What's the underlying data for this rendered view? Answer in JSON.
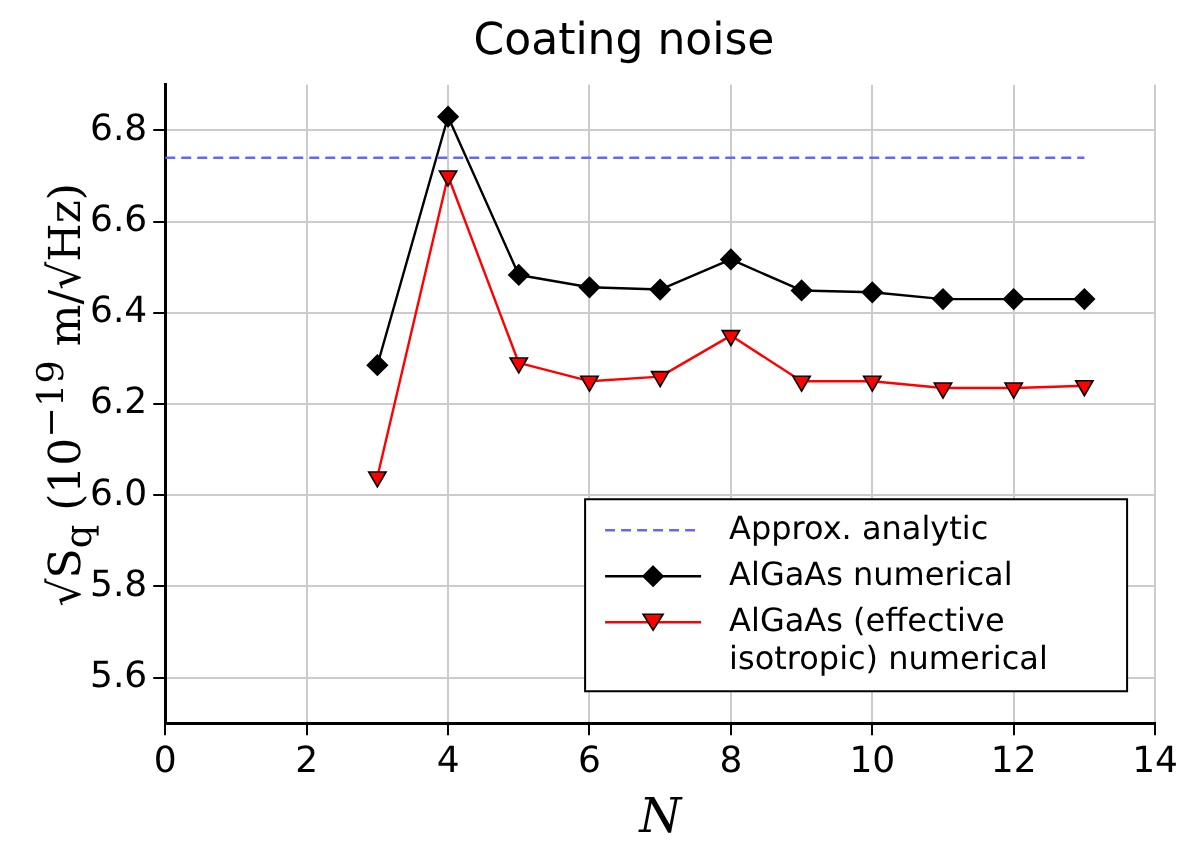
{
  "chart_data": {
    "type": "line",
    "title": "Coating noise",
    "xlabel": "N",
    "ylabel": "√S$_{q}$ (10$^{−19}$ m/√Hz)",
    "xlim": [
      0,
      14
    ],
    "xticks": [
      0,
      2,
      4,
      6,
      8,
      10,
      12,
      14
    ],
    "ylim": [
      5.5,
      6.9
    ],
    "yticks": [
      {
        "value": 5.6,
        "label": "5.6"
      },
      {
        "value": 5.8,
        "label": "5.8"
      },
      {
        "value": 6.0,
        "label": "6.0"
      },
      {
        "value": 6.2,
        "label": "6.2"
      },
      {
        "value": 6.4,
        "label": "6.4"
      },
      {
        "value": 6.6,
        "label": "6.6"
      },
      {
        "value": 6.8,
        "label": "6.8"
      }
    ],
    "grid": true,
    "legend": "bottom right",
    "series": [
      {
        "name": "Approx. analytic",
        "color": "#6666ff",
        "x": [
          0,
          13
        ],
        "values": [
          6.74,
          6.74
        ],
        "line_style": "dashed",
        "marker": "none"
      },
      {
        "name": "AlGaAs numerical",
        "color": "#000000",
        "x": [
          3,
          4,
          5,
          6,
          7,
          8,
          9,
          10,
          11,
          12,
          13
        ],
        "values": [
          6.285,
          6.83,
          6.483,
          6.456,
          6.451,
          6.517,
          6.449,
          6.445,
          6.43,
          6.43,
          6.43
        ],
        "line_style": "solid",
        "marker": "diamond"
      },
      {
        "name": "AlGaAs (effective isotropic) numerical",
        "color": "#ff0000",
        "x": [
          3,
          4,
          5,
          6,
          7,
          8,
          9,
          10,
          11,
          12,
          13
        ],
        "values": [
          6.04,
          6.7,
          6.29,
          6.25,
          6.26,
          6.35,
          6.25,
          6.25,
          6.235,
          6.235,
          6.24
        ],
        "line_style": "solid",
        "marker": "triangle"
      }
    ]
  }
}
